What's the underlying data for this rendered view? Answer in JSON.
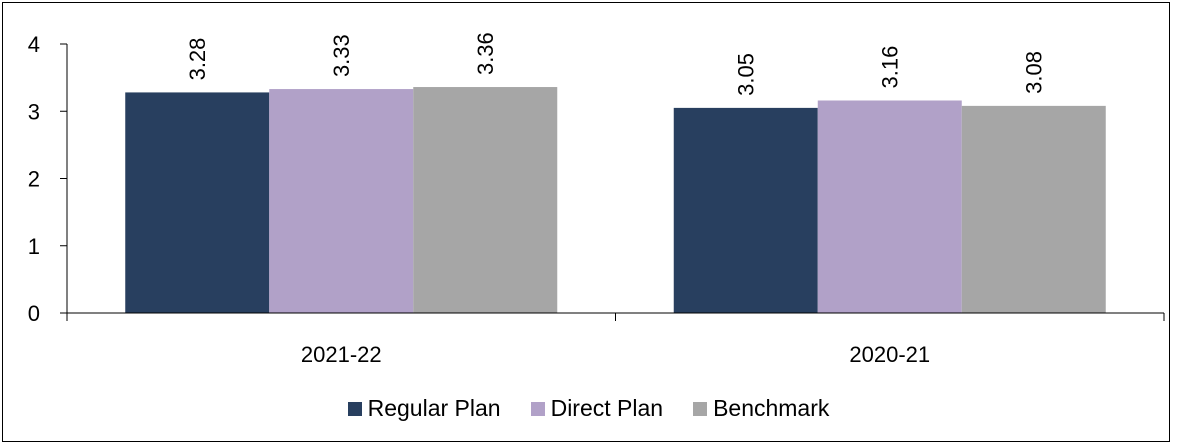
{
  "chart_data": {
    "type": "bar",
    "categories": [
      "2021-22",
      "2020-21"
    ],
    "series": [
      {
        "name": "Regular Plan",
        "color": "#283f5f",
        "values": [
          3.28,
          3.05
        ]
      },
      {
        "name": "Direct Plan",
        "color": "#b1a1c8",
        "values": [
          3.33,
          3.16
        ]
      },
      {
        "name": "Benchmark",
        "color": "#a6a6a6",
        "values": [
          3.36,
          3.08
        ]
      }
    ],
    "y_ticks": [
      "0",
      "1",
      "2",
      "3",
      "4"
    ],
    "ylim": [
      0,
      4
    ],
    "grid": false,
    "legend_position": "bottom"
  }
}
